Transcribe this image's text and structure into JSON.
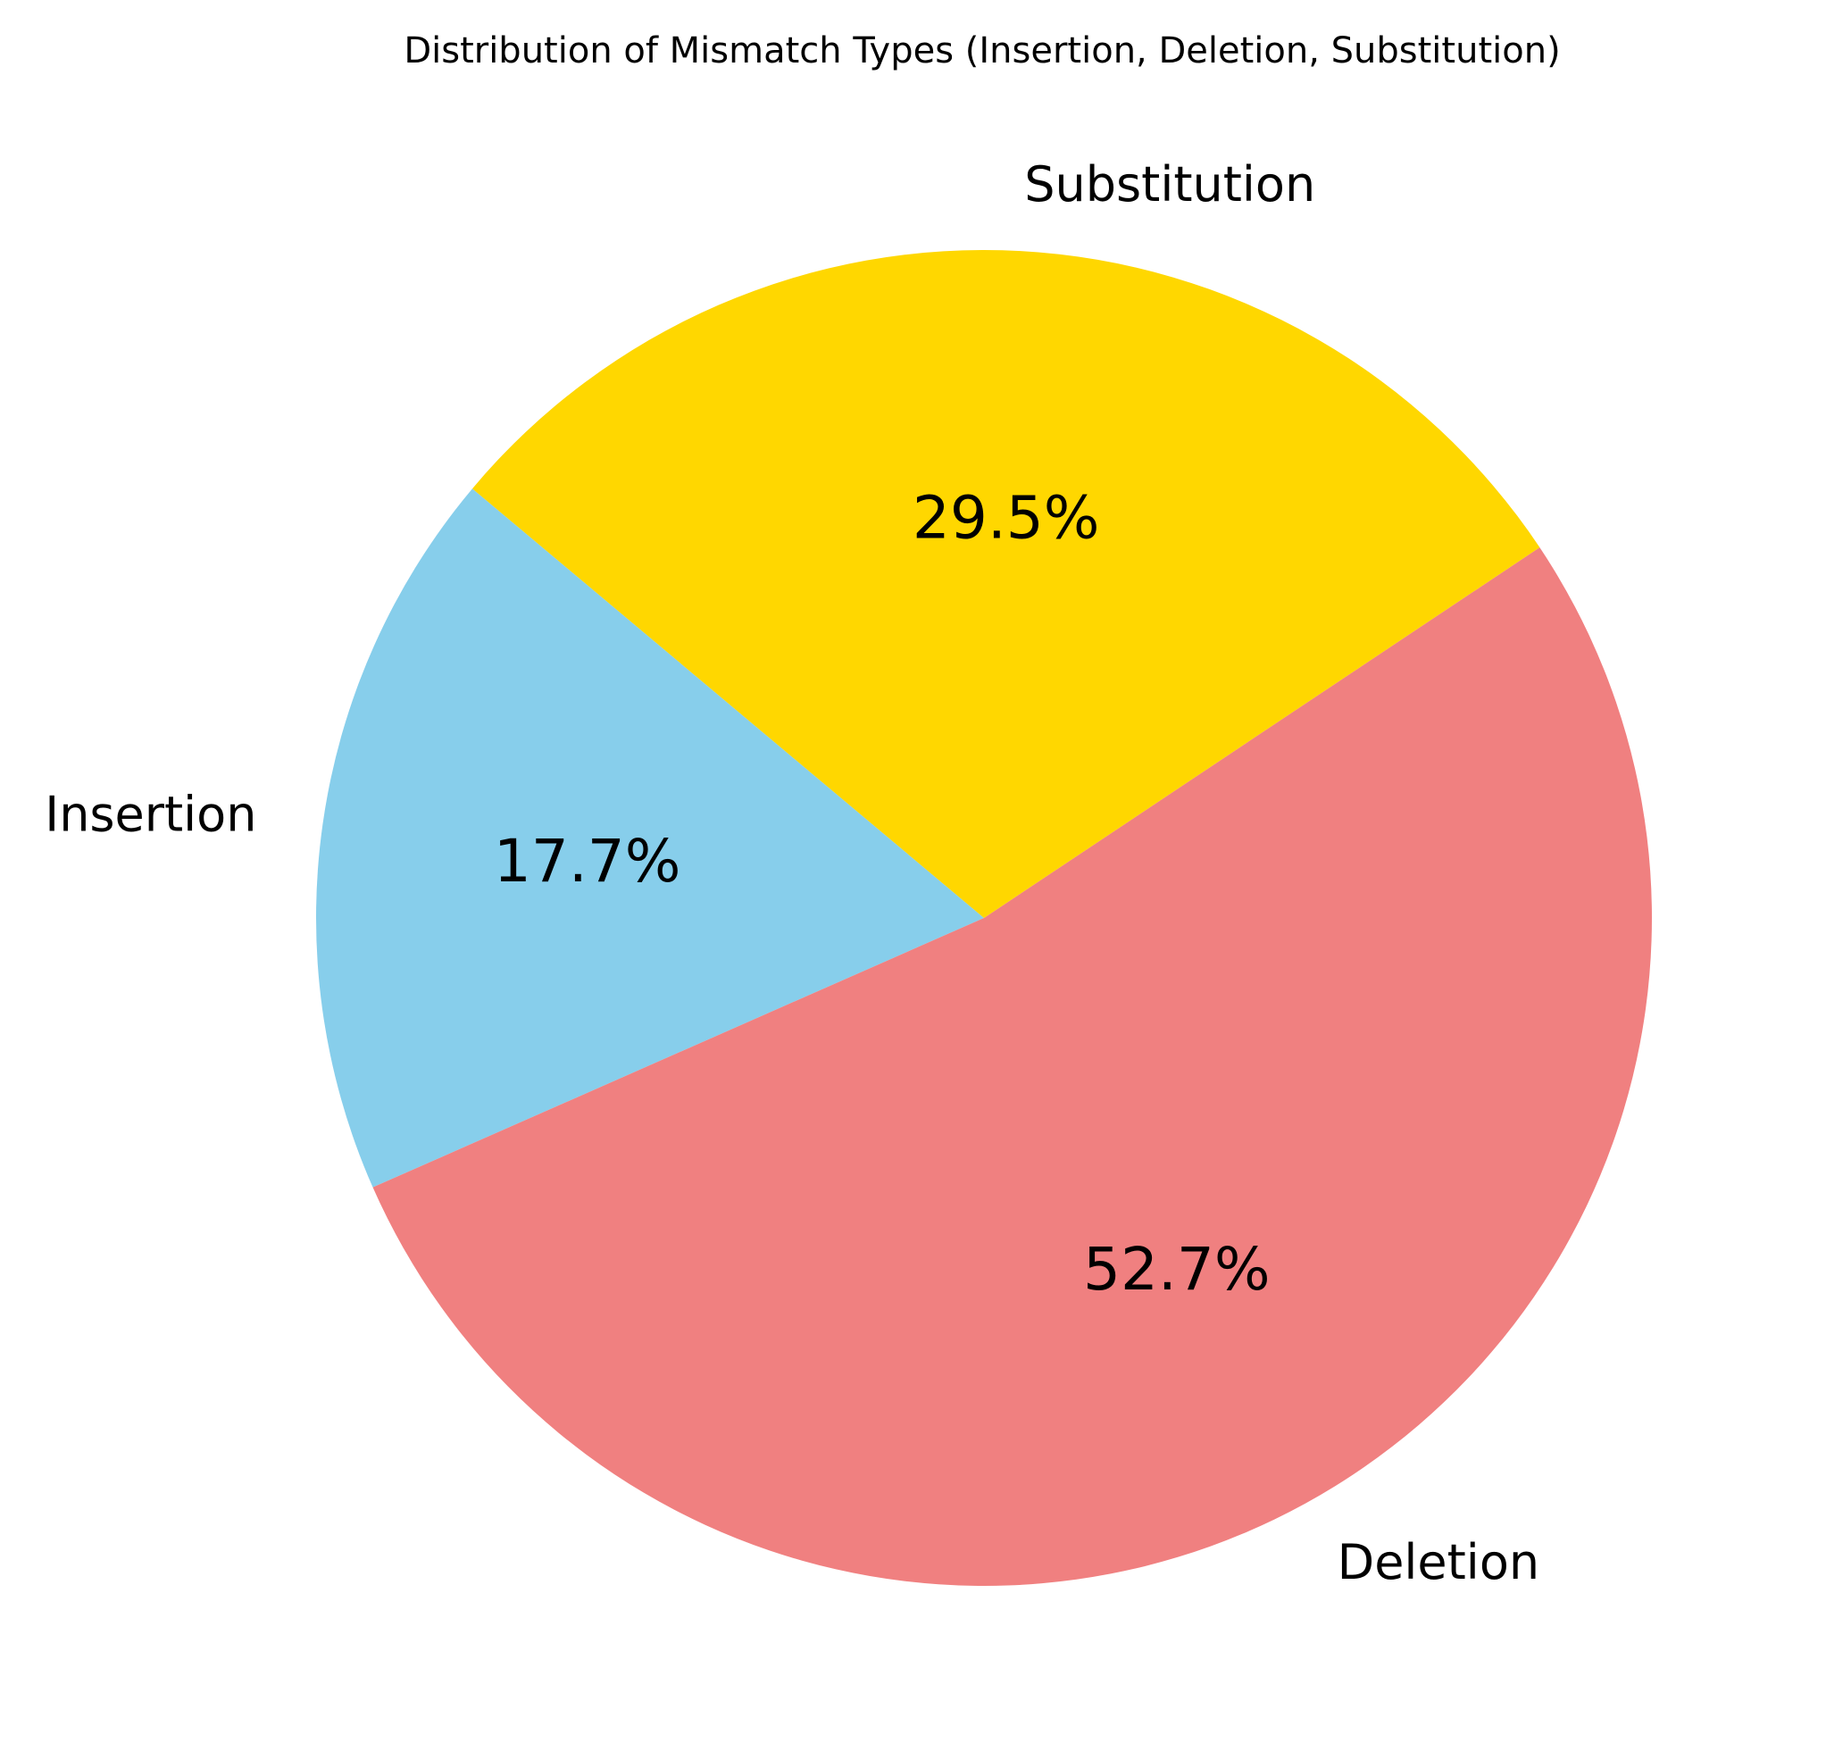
{
  "chart_data": {
    "type": "pie",
    "title": "Distribution of Mismatch Types (Insertion, Deletion, Substitution)",
    "slices": [
      {
        "label": "Insertion",
        "value": 17.7,
        "pct_label": "17.7%",
        "color": "#87CEEB"
      },
      {
        "label": "Deletion",
        "value": 52.7,
        "pct_label": "52.7%",
        "color": "#F08080"
      },
      {
        "label": "Substitution",
        "value": 29.5,
        "pct_label": "29.5%",
        "color": "#FFD700"
      }
    ],
    "start_angle_deg": 140,
    "direction": "counterclockwise",
    "legend": "none"
  }
}
